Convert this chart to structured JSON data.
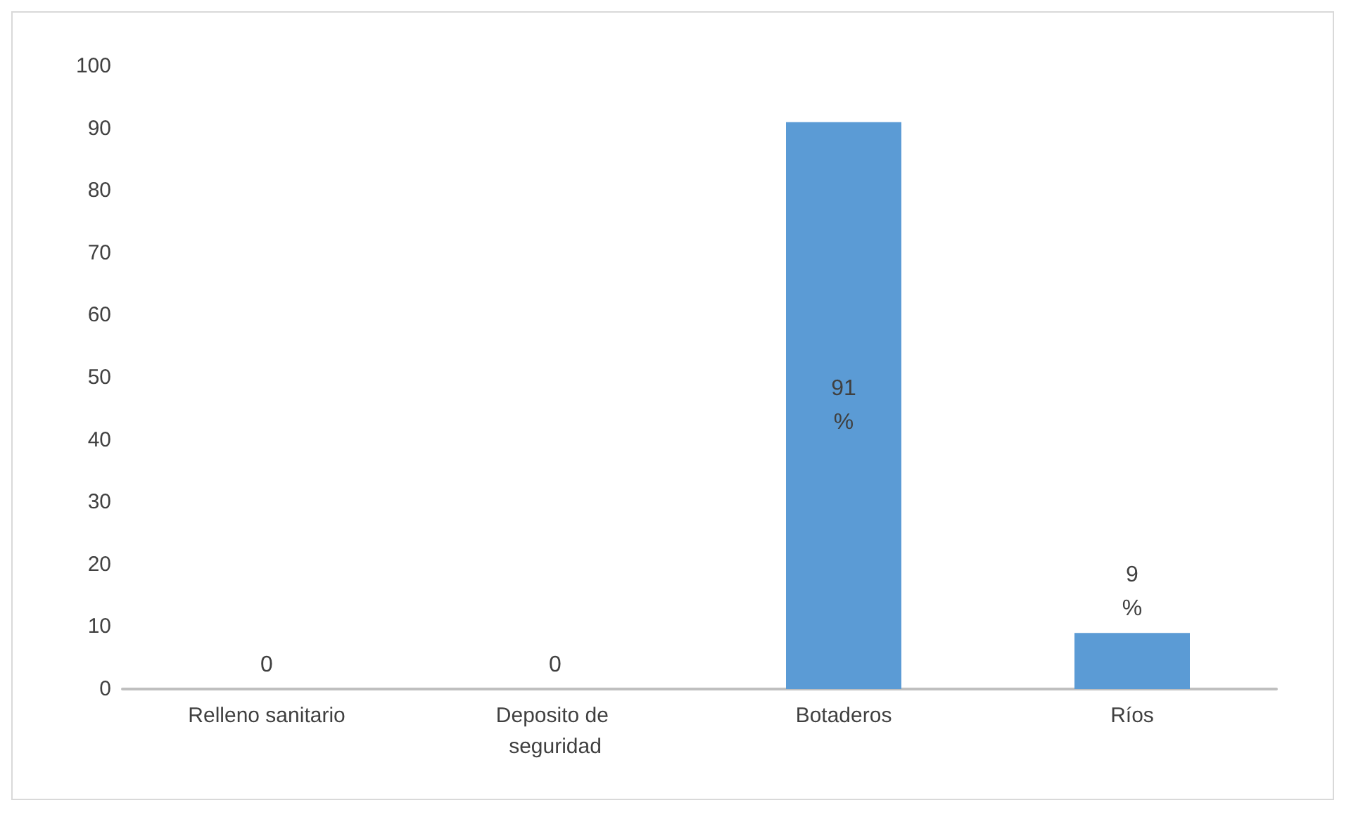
{
  "chart_data": {
    "type": "bar",
    "categories": [
      "Relleno sanitario",
      "Deposito de seguridad",
      "Botaderos",
      "Ríos"
    ],
    "values": [
      0,
      0,
      91,
      9
    ],
    "value_labels": [
      "0",
      "0",
      "91 %",
      "9 %"
    ],
    "color": "#5b9bd5",
    "ylim": [
      0,
      100
    ],
    "yticks": [
      0,
      10,
      20,
      30,
      40,
      50,
      60,
      70,
      80,
      90,
      100
    ],
    "grid": false
  }
}
